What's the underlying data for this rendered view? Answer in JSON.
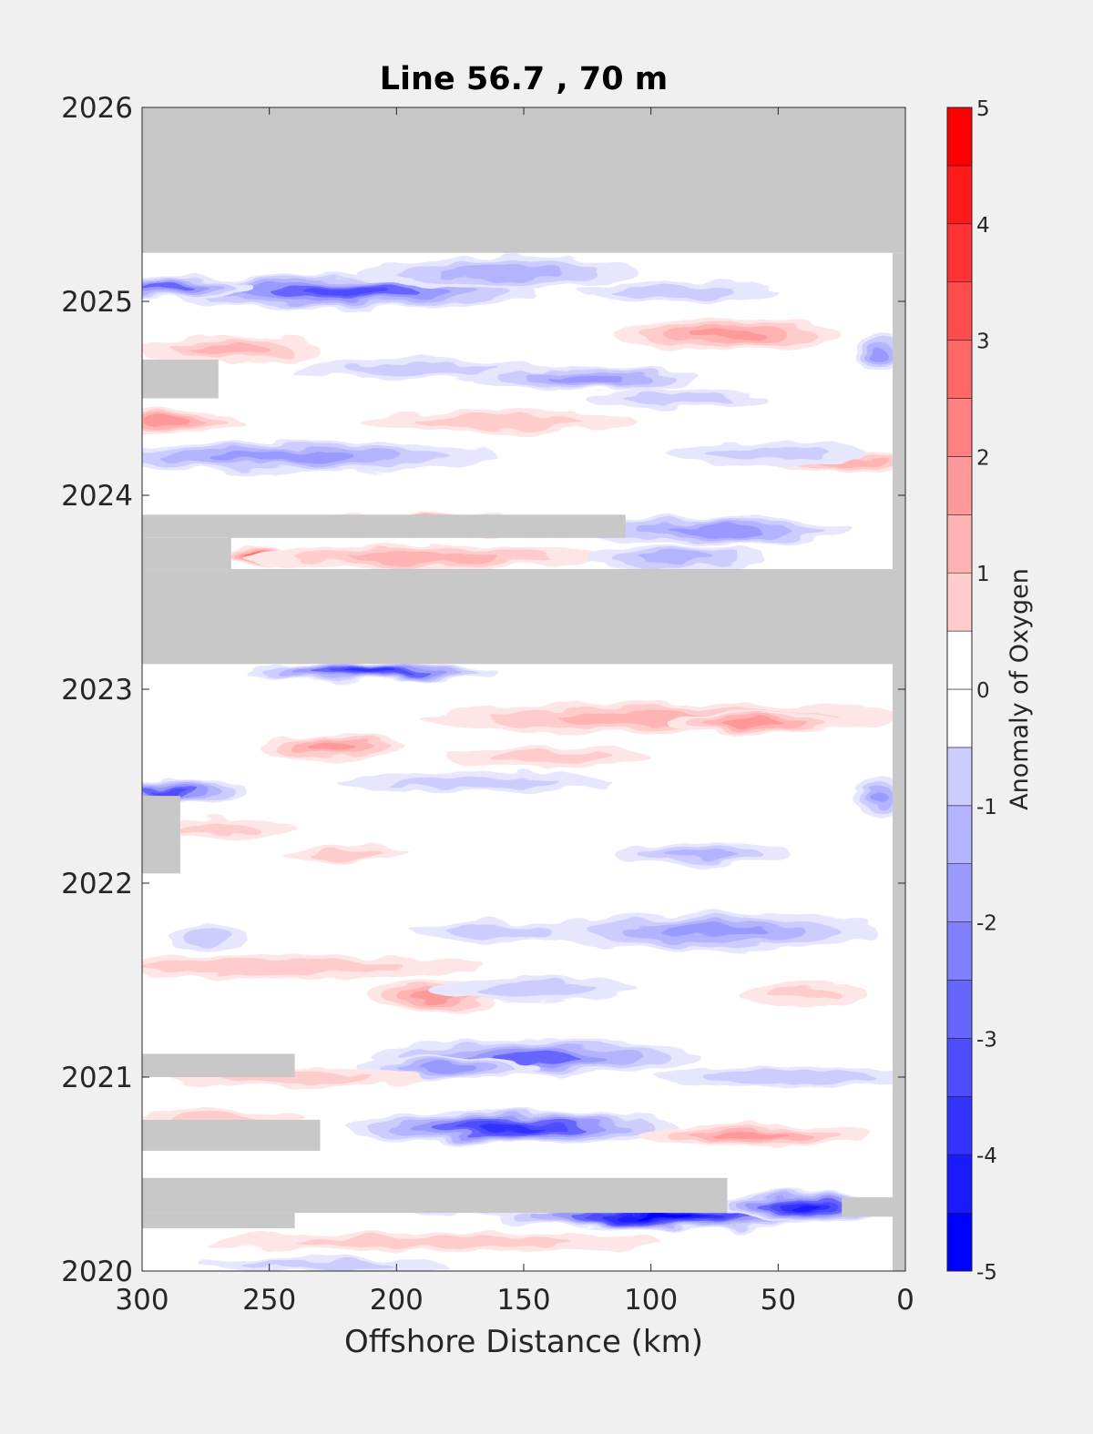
{
  "chart_data": {
    "type": "heatmap",
    "title": "Line 56.7 , 70 m",
    "xlabel": "Offshore Distance (km)",
    "ylabel": "",
    "x_direction": "reversed",
    "xlim": [
      0,
      300
    ],
    "ylim": [
      2020,
      2026
    ],
    "xticks": [
      "300",
      "250",
      "200",
      "150",
      "100",
      "50",
      "0"
    ],
    "yticks": [
      "2020",
      "2021",
      "2022",
      "2023",
      "2024",
      "2025",
      "2026"
    ],
    "colorbar": {
      "label": "Anomaly of Oxygen",
      "range": [
        -5,
        5
      ],
      "levels": [
        -5,
        -4.5,
        -4,
        -3.5,
        -3,
        -2.5,
        -2,
        -1.5,
        -1,
        -0.5,
        0,
        0.5,
        1,
        1.5,
        2,
        2.5,
        3,
        3.5,
        4,
        4.5,
        5
      ],
      "ticks": [
        "5",
        "4",
        "3",
        "2",
        "1",
        "0",
        "-1",
        "-2",
        "-3",
        "-4",
        "-5"
      ],
      "colors": [
        "#0000ff",
        "#1a1aff",
        "#3333ff",
        "#4d4dff",
        "#6666ff",
        "#8080ff",
        "#9999ff",
        "#b3b3ff",
        "#ccccff",
        "#e6e6ff",
        "#ffffff",
        "#ffffff",
        "#ffe6e6",
        "#ffcccc",
        "#ffb3b3",
        "#ff9999",
        "#ff8080",
        "#ff6666",
        "#ff4d4d",
        "#ff3333",
        "#ff1a1a",
        "#ff0000"
      ]
    },
    "missing_color": "#c8c8c8",
    "missing_regions": [
      {
        "x": [
          0,
          300
        ],
        "y": [
          2025.25,
          2026.0
        ]
      },
      {
        "x": [
          0,
          300
        ],
        "y": [
          2023.13,
          2023.62
        ]
      },
      {
        "x": [
          110,
          300
        ],
        "y": [
          2023.78,
          2023.9
        ]
      },
      {
        "x": [
          265,
          300
        ],
        "y": [
          2023.62,
          2023.78
        ]
      },
      {
        "x": [
          270,
          300
        ],
        "y": [
          2024.5,
          2024.7
        ]
      },
      {
        "x": [
          285,
          300
        ],
        "y": [
          2022.05,
          2022.45
        ]
      },
      {
        "x": [
          240,
          300
        ],
        "y": [
          2021.0,
          2021.12
        ]
      },
      {
        "x": [
          230,
          300
        ],
        "y": [
          2020.62,
          2020.78
        ]
      },
      {
        "x": [
          70,
          300
        ],
        "y": [
          2020.3,
          2020.48
        ]
      },
      {
        "x": [
          240,
          300
        ],
        "y": [
          2020.22,
          2020.3
        ]
      },
      {
        "x": [
          0,
          25
        ],
        "y": [
          2020.28,
          2020.38
        ]
      },
      {
        "x": [
          0,
          5
        ],
        "y": [
          2019.96,
          2025.25
        ]
      }
    ],
    "anomaly_features": [
      {
        "x": 220,
        "y": 2025.05,
        "rx": 75,
        "ry": 0.09,
        "value": -3.0
      },
      {
        "x": 290,
        "y": 2025.07,
        "rx": 35,
        "ry": 0.06,
        "value": -2.5
      },
      {
        "x": 160,
        "y": 2025.15,
        "rx": 55,
        "ry": 0.08,
        "value": -1.5
      },
      {
        "x": 90,
        "y": 2025.05,
        "rx": 40,
        "ry": 0.05,
        "value": -1.0
      },
      {
        "x": 70,
        "y": 2024.83,
        "rx": 45,
        "ry": 0.08,
        "value": 1.8
      },
      {
        "x": 265,
        "y": 2024.75,
        "rx": 35,
        "ry": 0.07,
        "value": 1.5
      },
      {
        "x": 10,
        "y": 2024.73,
        "rx": 10,
        "ry": 0.1,
        "value": -2.0
      },
      {
        "x": 125,
        "y": 2024.6,
        "rx": 45,
        "ry": 0.06,
        "value": -1.8
      },
      {
        "x": 190,
        "y": 2024.65,
        "rx": 50,
        "ry": 0.05,
        "value": -1.0
      },
      {
        "x": 90,
        "y": 2024.5,
        "rx": 35,
        "ry": 0.05,
        "value": -1.2
      },
      {
        "x": 290,
        "y": 2024.38,
        "rx": 30,
        "ry": 0.06,
        "value": 2.0
      },
      {
        "x": 160,
        "y": 2024.38,
        "rx": 55,
        "ry": 0.06,
        "value": 1.0
      },
      {
        "x": 245,
        "y": 2024.2,
        "rx": 85,
        "ry": 0.08,
        "value": -2.0
      },
      {
        "x": 20,
        "y": 2024.17,
        "rx": 30,
        "ry": 0.05,
        "value": 1.5
      },
      {
        "x": 55,
        "y": 2024.22,
        "rx": 40,
        "ry": 0.06,
        "value": -1.0
      },
      {
        "x": 180,
        "y": 2023.85,
        "rx": 35,
        "ry": 0.06,
        "value": 2.8
      },
      {
        "x": 75,
        "y": 2023.82,
        "rx": 55,
        "ry": 0.07,
        "value": -1.8
      },
      {
        "x": 230,
        "y": 2023.85,
        "rx": 50,
        "ry": 0.05,
        "value": 1.2
      },
      {
        "x": 255,
        "y": 2023.69,
        "rx": 12,
        "ry": 0.05,
        "value": 3.0
      },
      {
        "x": 190,
        "y": 2023.68,
        "rx": 70,
        "ry": 0.06,
        "value": 1.5
      },
      {
        "x": 90,
        "y": 2023.68,
        "rx": 35,
        "ry": 0.06,
        "value": -1.5
      },
      {
        "x": 210,
        "y": 2023.09,
        "rx": 50,
        "ry": 0.05,
        "value": -3.5
      },
      {
        "x": 95,
        "y": 2022.85,
        "rx": 95,
        "ry": 0.08,
        "value": 1.5
      },
      {
        "x": 60,
        "y": 2022.83,
        "rx": 35,
        "ry": 0.06,
        "value": 2.0
      },
      {
        "x": 225,
        "y": 2022.7,
        "rx": 28,
        "ry": 0.07,
        "value": 2.0
      },
      {
        "x": 140,
        "y": 2022.65,
        "rx": 40,
        "ry": 0.06,
        "value": 1.2
      },
      {
        "x": 290,
        "y": 2022.48,
        "rx": 30,
        "ry": 0.06,
        "value": -3.0
      },
      {
        "x": 170,
        "y": 2022.52,
        "rx": 55,
        "ry": 0.05,
        "value": -0.8
      },
      {
        "x": 10,
        "y": 2022.45,
        "rx": 10,
        "ry": 0.1,
        "value": -2.0
      },
      {
        "x": 270,
        "y": 2022.28,
        "rx": 30,
        "ry": 0.05,
        "value": 1.2
      },
      {
        "x": 80,
        "y": 2022.15,
        "rx": 35,
        "ry": 0.06,
        "value": -1.5
      },
      {
        "x": 220,
        "y": 2022.15,
        "rx": 25,
        "ry": 0.04,
        "value": 1.0
      },
      {
        "x": 75,
        "y": 2021.75,
        "rx": 65,
        "ry": 0.1,
        "value": -1.8
      },
      {
        "x": 160,
        "y": 2021.75,
        "rx": 35,
        "ry": 0.05,
        "value": -1.0
      },
      {
        "x": 275,
        "y": 2021.72,
        "rx": 15,
        "ry": 0.06,
        "value": -1.0
      },
      {
        "x": 250,
        "y": 2021.57,
        "rx": 85,
        "ry": 0.06,
        "value": 1.0
      },
      {
        "x": 185,
        "y": 2021.42,
        "rx": 25,
        "ry": 0.08,
        "value": 2.2
      },
      {
        "x": 145,
        "y": 2021.45,
        "rx": 40,
        "ry": 0.06,
        "value": -1.0
      },
      {
        "x": 40,
        "y": 2021.43,
        "rx": 25,
        "ry": 0.06,
        "value": 1.0
      },
      {
        "x": 145,
        "y": 2021.1,
        "rx": 65,
        "ry": 0.09,
        "value": -2.3
      },
      {
        "x": 180,
        "y": 2021.05,
        "rx": 35,
        "ry": 0.06,
        "value": -2.0
      },
      {
        "x": 240,
        "y": 2021.0,
        "rx": 50,
        "ry": 0.05,
        "value": 1.0
      },
      {
        "x": 45,
        "y": 2021.0,
        "rx": 55,
        "ry": 0.05,
        "value": -1.0
      },
      {
        "x": 155,
        "y": 2020.74,
        "rx": 65,
        "ry": 0.09,
        "value": -3.5
      },
      {
        "x": 60,
        "y": 2020.7,
        "rx": 45,
        "ry": 0.06,
        "value": 1.8
      },
      {
        "x": 270,
        "y": 2020.78,
        "rx": 35,
        "ry": 0.05,
        "value": 1.0
      },
      {
        "x": 95,
        "y": 2020.28,
        "rx": 65,
        "ry": 0.07,
        "value": -4.5
      },
      {
        "x": 40,
        "y": 2020.33,
        "rx": 32,
        "ry": 0.08,
        "value": -3.8
      },
      {
        "x": 160,
        "y": 2020.35,
        "rx": 45,
        "ry": 0.06,
        "value": -1.8
      },
      {
        "x": 185,
        "y": 2020.15,
        "rx": 90,
        "ry": 0.05,
        "value": 1.0
      },
      {
        "x": 230,
        "y": 2020.03,
        "rx": 50,
        "ry": 0.04,
        "value": -0.8
      }
    ]
  }
}
